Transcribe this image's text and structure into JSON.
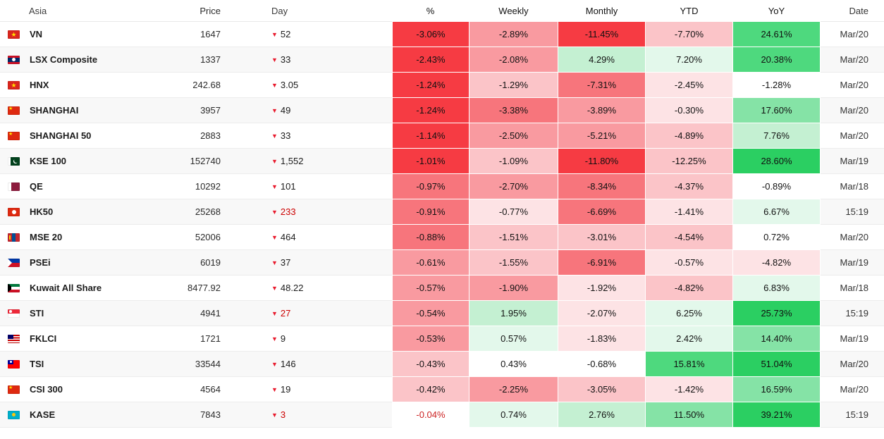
{
  "header": {
    "columns": [
      {
        "key": "asia",
        "label": "Asia"
      },
      {
        "key": "price",
        "label": "Price"
      },
      {
        "key": "day",
        "label": "Day"
      },
      {
        "key": "percent",
        "label": "%"
      },
      {
        "key": "weekly",
        "label": "Weekly"
      },
      {
        "key": "monthly",
        "label": "Monthly"
      },
      {
        "key": "ytd",
        "label": "YTD"
      },
      {
        "key": "yoy",
        "label": "YoY"
      },
      {
        "key": "date",
        "label": "Date"
      }
    ]
  },
  "day_indicator": "▼",
  "colors": {
    "down_triangle": "#e8192c",
    "live_value": "#cc0000",
    "heat_text": "#111111",
    "palette": {
      "r5": "#f63b43",
      "r4": "#f7757c",
      "r3": "#f99aa0",
      "r2": "#fbc4c8",
      "r1": "#fde3e5",
      "w": "#ffffff",
      "g1": "#e3f8eb",
      "g2": "#c4f0d2",
      "g3": "#85e3a6",
      "g4": "#4ed97e",
      "g5": "#2bcf62"
    }
  },
  "rows": [
    {
      "flag": "vn",
      "name": "VN",
      "price": "1647",
      "day": "52",
      "live": false,
      "date": "Mar/20",
      "cells": [
        {
          "v": "-3.06%",
          "c": "r5"
        },
        {
          "v": "-2.89%",
          "c": "r3"
        },
        {
          "v": "-11.45%",
          "c": "r5"
        },
        {
          "v": "-7.70%",
          "c": "r2"
        },
        {
          "v": "24.61%",
          "c": "g4"
        }
      ]
    },
    {
      "flag": "la",
      "name": "LSX Composite",
      "price": "1337",
      "day": "33",
      "live": false,
      "date": "Mar/20",
      "cells": [
        {
          "v": "-2.43%",
          "c": "r5"
        },
        {
          "v": "-2.08%",
          "c": "r3"
        },
        {
          "v": "4.29%",
          "c": "g2"
        },
        {
          "v": "7.20%",
          "c": "g1"
        },
        {
          "v": "20.38%",
          "c": "g4"
        }
      ]
    },
    {
      "flag": "vn",
      "name": "HNX",
      "price": "242.68",
      "day": "3.05",
      "live": false,
      "date": "Mar/20",
      "cells": [
        {
          "v": "-1.24%",
          "c": "r5"
        },
        {
          "v": "-1.29%",
          "c": "r2"
        },
        {
          "v": "-7.31%",
          "c": "r4"
        },
        {
          "v": "-2.45%",
          "c": "r1"
        },
        {
          "v": "-1.28%",
          "c": "w"
        }
      ]
    },
    {
      "flag": "cn",
      "name": "SHANGHAI",
      "price": "3957",
      "day": "49",
      "live": false,
      "date": "Mar/20",
      "cells": [
        {
          "v": "-1.24%",
          "c": "r5"
        },
        {
          "v": "-3.38%",
          "c": "r4"
        },
        {
          "v": "-3.89%",
          "c": "r3"
        },
        {
          "v": "-0.30%",
          "c": "r1"
        },
        {
          "v": "17.60%",
          "c": "g3"
        }
      ]
    },
    {
      "flag": "cn",
      "name": "SHANGHAI 50",
      "price": "2883",
      "day": "33",
      "live": false,
      "date": "Mar/20",
      "cells": [
        {
          "v": "-1.14%",
          "c": "r5"
        },
        {
          "v": "-2.50%",
          "c": "r3"
        },
        {
          "v": "-5.21%",
          "c": "r3"
        },
        {
          "v": "-4.89%",
          "c": "r2"
        },
        {
          "v": "7.76%",
          "c": "g2"
        }
      ]
    },
    {
      "flag": "pk",
      "name": "KSE 100",
      "price": "152740",
      "day": "1,552",
      "live": false,
      "date": "Mar/19",
      "cells": [
        {
          "v": "-1.01%",
          "c": "r5"
        },
        {
          "v": "-1.09%",
          "c": "r2"
        },
        {
          "v": "-11.80%",
          "c": "r5"
        },
        {
          "v": "-12.25%",
          "c": "r2"
        },
        {
          "v": "28.60%",
          "c": "g5"
        }
      ]
    },
    {
      "flag": "qa",
      "name": "QE",
      "price": "10292",
      "day": "101",
      "live": false,
      "date": "Mar/18",
      "cells": [
        {
          "v": "-0.97%",
          "c": "r4"
        },
        {
          "v": "-2.70%",
          "c": "r3"
        },
        {
          "v": "-8.34%",
          "c": "r4"
        },
        {
          "v": "-4.37%",
          "c": "r2"
        },
        {
          "v": "-0.89%",
          "c": "w"
        }
      ]
    },
    {
      "flag": "hk",
      "name": "HK50",
      "price": "25268",
      "day": "233",
      "live": true,
      "date": "15:19",
      "cells": [
        {
          "v": "-0.91%",
          "c": "r4"
        },
        {
          "v": "-0.77%",
          "c": "r1"
        },
        {
          "v": "-6.69%",
          "c": "r4"
        },
        {
          "v": "-1.41%",
          "c": "r1"
        },
        {
          "v": "6.67%",
          "c": "g1"
        }
      ]
    },
    {
      "flag": "mn",
      "name": "MSE 20",
      "price": "52006",
      "day": "464",
      "live": false,
      "date": "Mar/20",
      "cells": [
        {
          "v": "-0.88%",
          "c": "r4"
        },
        {
          "v": "-1.51%",
          "c": "r2"
        },
        {
          "v": "-3.01%",
          "c": "r2"
        },
        {
          "v": "-4.54%",
          "c": "r2"
        },
        {
          "v": "0.72%",
          "c": "w"
        }
      ]
    },
    {
      "flag": "ph",
      "name": "PSEi",
      "price": "6019",
      "day": "37",
      "live": false,
      "date": "Mar/19",
      "cells": [
        {
          "v": "-0.61%",
          "c": "r3"
        },
        {
          "v": "-1.55%",
          "c": "r2"
        },
        {
          "v": "-6.91%",
          "c": "r4"
        },
        {
          "v": "-0.57%",
          "c": "r1"
        },
        {
          "v": "-4.82%",
          "c": "r1"
        }
      ]
    },
    {
      "flag": "kw",
      "name": "Kuwait All Share",
      "price": "8477.92",
      "day": "48.22",
      "live": false,
      "date": "Mar/18",
      "cells": [
        {
          "v": "-0.57%",
          "c": "r3"
        },
        {
          "v": "-1.90%",
          "c": "r3"
        },
        {
          "v": "-1.92%",
          "c": "r1"
        },
        {
          "v": "-4.82%",
          "c": "r2"
        },
        {
          "v": "6.83%",
          "c": "g1"
        }
      ]
    },
    {
      "flag": "sg",
      "name": "STI",
      "price": "4941",
      "day": "27",
      "live": true,
      "date": "15:19",
      "cells": [
        {
          "v": "-0.54%",
          "c": "r3"
        },
        {
          "v": "1.95%",
          "c": "g2"
        },
        {
          "v": "-2.07%",
          "c": "r1"
        },
        {
          "v": "6.25%",
          "c": "g1"
        },
        {
          "v": "25.73%",
          "c": "g5"
        }
      ]
    },
    {
      "flag": "my",
      "name": "FKLCI",
      "price": "1721",
      "day": "9",
      "live": false,
      "date": "Mar/19",
      "cells": [
        {
          "v": "-0.53%",
          "c": "r3"
        },
        {
          "v": "0.57%",
          "c": "g1"
        },
        {
          "v": "-1.83%",
          "c": "r1"
        },
        {
          "v": "2.42%",
          "c": "g1"
        },
        {
          "v": "14.40%",
          "c": "g3"
        }
      ]
    },
    {
      "flag": "tw",
      "name": "TSI",
      "price": "33544",
      "day": "146",
      "live": false,
      "date": "Mar/20",
      "cells": [
        {
          "v": "-0.43%",
          "c": "r2"
        },
        {
          "v": "0.43%",
          "c": "w"
        },
        {
          "v": "-0.68%",
          "c": "w"
        },
        {
          "v": "15.81%",
          "c": "g4"
        },
        {
          "v": "51.04%",
          "c": "g5"
        }
      ]
    },
    {
      "flag": "cn",
      "name": "CSI 300",
      "price": "4564",
      "day": "19",
      "live": false,
      "date": "Mar/20",
      "cells": [
        {
          "v": "-0.42%",
          "c": "r2"
        },
        {
          "v": "-2.25%",
          "c": "r3"
        },
        {
          "v": "-3.05%",
          "c": "r2"
        },
        {
          "v": "-1.42%",
          "c": "r1"
        },
        {
          "v": "16.59%",
          "c": "g3"
        }
      ]
    },
    {
      "flag": "kz",
      "name": "KASE",
      "price": "7843",
      "day": "3",
      "live": true,
      "date": "15:19",
      "cells": [
        {
          "v": "-0.04%",
          "c": "w",
          "tc": "#cc2222"
        },
        {
          "v": "0.74%",
          "c": "g1"
        },
        {
          "v": "2.76%",
          "c": "g2"
        },
        {
          "v": "11.50%",
          "c": "g3"
        },
        {
          "v": "39.21%",
          "c": "g5"
        }
      ]
    }
  ]
}
